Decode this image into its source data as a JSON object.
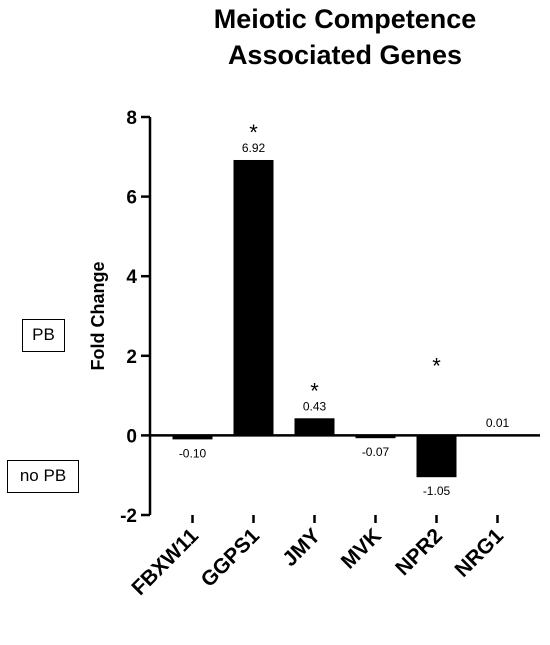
{
  "chart_data": {
    "type": "bar",
    "title_lines": [
      "Meiotic Competence",
      "Associated Genes"
    ],
    "ylabel": "Fold Change",
    "xlabel": "",
    "ylim": [
      -2,
      8
    ],
    "yticks": [
      -2,
      0,
      2,
      4,
      6,
      8
    ],
    "categories": [
      "FBXW11",
      "GGPS1",
      "JMY",
      "MVK",
      "NPR2",
      "NRG1"
    ],
    "values": [
      -0.1,
      6.92,
      0.43,
      -0.07,
      -1.05,
      0.01
    ],
    "value_labels": [
      "-0.10",
      "6.92",
      "0.43",
      "-0.07",
      "-1.05",
      "0.01"
    ],
    "significant": [
      false,
      true,
      true,
      false,
      true,
      false
    ],
    "significance_marker": "*",
    "bar_color": "#000000",
    "grid": false,
    "legend": "none"
  },
  "annotations": {
    "upper_box": "PB",
    "lower_box": "no PB"
  }
}
